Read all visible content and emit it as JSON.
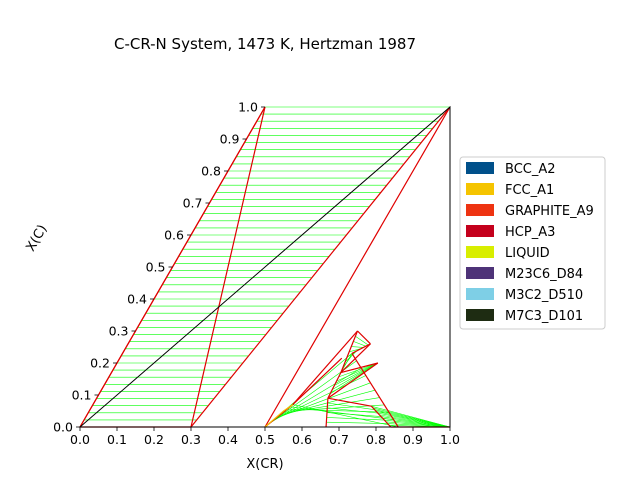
{
  "chart_data": {
    "type": "ternary-phase-diagram",
    "title": "C-CR-N System, 1473 K, Hertzman 1987",
    "xlabel": "X(CR)",
    "ylabel": "X(C)",
    "xlim": [
      0,
      1
    ],
    "ylim": [
      0,
      1
    ],
    "x_ticks": [
      "0.0",
      "0.1",
      "0.2",
      "0.3",
      "0.4",
      "0.5",
      "0.6",
      "0.7",
      "0.8",
      "0.9",
      "1.0"
    ],
    "y_ticks": [
      "0.0",
      "0.1",
      "0.2",
      "0.3",
      "0.4",
      "0.5",
      "0.6",
      "0.7",
      "0.8",
      "0.9",
      "1.0"
    ],
    "legend_position": "right",
    "legend": [
      {
        "label": "BCC_A2",
        "color": "#00508a"
      },
      {
        "label": "FCC_A1",
        "color": "#f5c400"
      },
      {
        "label": "GRAPHITE_A9",
        "color": "#ee3311"
      },
      {
        "label": "HCP_A3",
        "color": "#c4001c"
      },
      {
        "label": "LIQUID",
        "color": "#d8ee00"
      },
      {
        "label": "M23C6_D84",
        "color": "#4e3378"
      },
      {
        "label": "M3C2_D510",
        "color": "#7ecfe6"
      },
      {
        "label": "M7C3_D101",
        "color": "#1e2c12"
      }
    ],
    "boundaries": [
      {
        "color": "#e00000",
        "points": [
          [
            0.3,
            0.0
          ],
          [
            0.0,
            1.0
          ]
        ]
      },
      {
        "color": "#e00000",
        "points": [
          [
            0.0,
            1.0
          ],
          [
            0.0,
            0.0
          ]
        ]
      },
      {
        "color": "#e00000",
        "points": [
          [
            0.0,
            0.0
          ],
          [
            0.3,
            0.0
          ]
        ]
      },
      {
        "color": "#e00000",
        "points": [
          [
            0.0,
            1.0
          ],
          [
            0.0,
            0.0
          ]
        ]
      },
      {
        "color": "#e00000",
        "points": [
          [
            0.54,
            0.07
          ],
          [
            0.6,
            0.3
          ]
        ]
      },
      {
        "color": "#e00000",
        "points": [
          [
            0.54,
            0.07
          ],
          [
            0.6,
            0.215
          ]
        ]
      },
      {
        "color": "#e00000",
        "points": [
          [
            0.6,
            0.3
          ],
          [
            0.62,
            0.17
          ]
        ]
      },
      {
        "color": "#e00000",
        "points": [
          [
            0.6,
            0.3
          ],
          [
            0.655,
            0.26
          ]
        ]
      },
      {
        "color": "#e00000",
        "points": [
          [
            0.62,
            0.17
          ],
          [
            0.655,
            0.26
          ]
        ]
      },
      {
        "color": "#e00000",
        "points": [
          [
            0.655,
            0.26
          ],
          [
            0.62,
            0.23
          ]
        ]
      },
      {
        "color": "#e00000",
        "points": [
          [
            0.62,
            0.17
          ],
          [
            0.705,
            0.2
          ]
        ]
      },
      {
        "color": "#e00000",
        "points": [
          [
            0.705,
            0.2
          ],
          [
            0.625,
            0.09
          ]
        ]
      },
      {
        "color": "#e00000",
        "points": [
          [
            0.625,
            0.09
          ],
          [
            0.62,
            0.17
          ]
        ]
      },
      {
        "color": "#e00000",
        "points": [
          [
            0.625,
            0.09
          ],
          [
            0.755,
            0.065
          ]
        ]
      },
      {
        "color": "#e00000",
        "points": [
          [
            0.625,
            0.09
          ],
          [
            0.665,
            0.0
          ]
        ]
      },
      {
        "color": "#e00000",
        "points": [
          [
            0.86,
            0.0
          ],
          [
            0.62,
            0.23
          ]
        ]
      },
      {
        "color": "#e00000",
        "points": [
          [
            0.755,
            0.065
          ],
          [
            0.84,
            0.0
          ]
        ]
      },
      {
        "color": "#e00000",
        "points": [
          [
            0.54,
            0.07
          ],
          [
            0.5,
            0.0
          ]
        ]
      },
      {
        "color": "#e00000",
        "points": [
          [
            0.5,
            0.0
          ],
          [
            0.5,
            1.0
          ]
        ]
      },
      {
        "color": "#e00000",
        "points": [
          [
            0.5,
            1.0
          ],
          [
            0.3,
            0.0
          ]
        ]
      },
      {
        "color": "#e00000",
        "points": [
          [
            0.84,
            0.0
          ],
          [
            1.0,
            0.0
          ]
        ]
      }
    ],
    "tie_line_fans": [
      {
        "color": "#00ff00",
        "from": [
          [
            0.0,
            0.0
          ],
          [
            0.0,
            1.0
          ]
        ],
        "to": [
          [
            0.3,
            0.0
          ],
          [
            0.5,
            1.0
          ]
        ],
        "count": 45
      },
      {
        "color": "#00ff00",
        "from": [
          [
            0.5,
            0.0
          ],
          [
            0.54,
            0.07
          ]
        ],
        "to": [
          [
            0.62,
            0.23
          ],
          [
            0.86,
            0.0
          ]
        ],
        "count": 10
      },
      {
        "color": "#00ff00",
        "from": [
          [
            0.6,
            0.3
          ],
          [
            0.62,
            0.17
          ]
        ],
        "to": [
          [
            0.655,
            0.26
          ],
          [
            0.62,
            0.23
          ]
        ],
        "count": 8
      },
      {
        "color": "#00ff00",
        "from": [
          [
            0.62,
            0.17
          ],
          [
            0.625,
            0.09
          ]
        ],
        "to": [
          [
            0.705,
            0.2
          ],
          [
            0.705,
            0.2
          ]
        ],
        "count": 6
      },
      {
        "color": "#00ff00",
        "from": [
          [
            0.755,
            0.065
          ],
          [
            0.84,
            0.0
          ]
        ],
        "to": [
          [
            1.0,
            0.0
          ],
          [
            1.0,
            0.0
          ]
        ],
        "count": 12
      },
      {
        "color": "#00ff00",
        "from": [
          [
            0.665,
            0.0
          ],
          [
            0.625,
            0.09
          ]
        ],
        "to": [
          [
            0.84,
            0.0
          ],
          [
            0.755,
            0.065
          ]
        ],
        "count": 6
      }
    ],
    "lower_fcc_curve": {
      "color": "#f5c400",
      "points": [
        [
          0.5,
          0.0
        ],
        [
          0.51,
          0.02
        ],
        [
          0.525,
          0.05
        ],
        [
          0.54,
          0.07
        ]
      ]
    }
  }
}
